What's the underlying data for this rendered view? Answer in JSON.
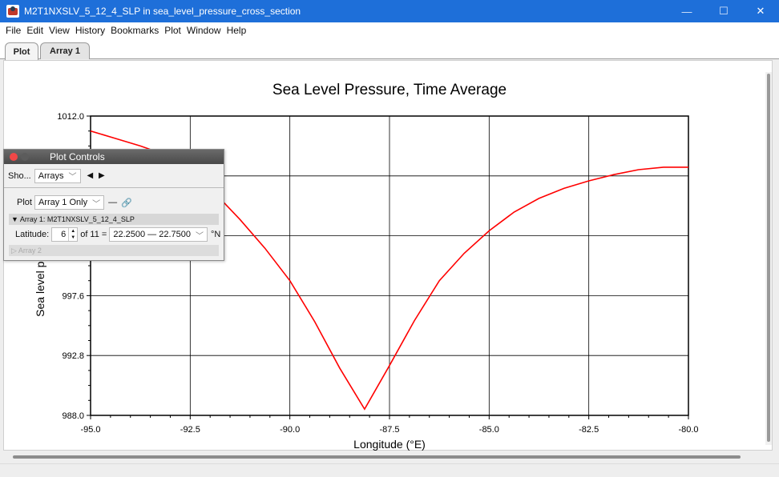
{
  "window": {
    "title": "M2T1NXSLV_5_12_4_SLP in sea_level_pressure_cross_section",
    "minimize_icon": "—",
    "maximize_icon": "☐",
    "close_icon": "✕"
  },
  "menu": [
    "File",
    "Edit",
    "View",
    "History",
    "Bookmarks",
    "Plot",
    "Window",
    "Help"
  ],
  "tabs": [
    {
      "label": "Plot",
      "active": true
    },
    {
      "label": "Array 1",
      "active": false
    }
  ],
  "chart_data": {
    "type": "line",
    "title": "Sea Level Pressure, Time Average",
    "xlabel": "Longitude (°E)",
    "ylabel": "Sea level pressure, t",
    "xlim": [
      -95.0,
      -80.0
    ],
    "ylim": [
      988.0,
      1012.0
    ],
    "x_ticks": [
      "-95.0",
      "-92.5",
      "-90.0",
      "-87.5",
      "-85.0",
      "-82.5",
      "-80.0"
    ],
    "y_ticks": [
      "988.0",
      "992.8",
      "997.6",
      "1012.0"
    ],
    "grid": true,
    "line_color": "#ff0000",
    "series": [
      {
        "x": [
          -95.0,
          -94.375,
          -93.75,
          -93.125,
          -92.5,
          -91.875,
          -91.25,
          -90.625,
          -90.0,
          -89.375,
          -88.75,
          -88.125,
          -87.5,
          -86.875,
          -86.25,
          -85.625,
          -85.0,
          -84.375,
          -83.75,
          -83.125,
          -82.5,
          -81.875,
          -81.25,
          -80.625,
          -80.0
        ],
        "y": [
          1010.8,
          1010.2,
          1009.6,
          1008.9,
          1007.6,
          1005.8,
          1003.7,
          1001.4,
          998.8,
          995.5,
          991.8,
          988.5,
          992.0,
          995.6,
          998.8,
          1001.0,
          1002.8,
          1004.3,
          1005.4,
          1006.2,
          1006.8,
          1007.3,
          1007.7,
          1007.9,
          1007.9
        ]
      }
    ]
  },
  "plot_controls": {
    "title": "Plot Controls",
    "show_label": "Sho...",
    "show_value": "Arrays",
    "nav_arrows": "◀ ▶",
    "plot_label": "Plot",
    "plot_value": "Array 1 Only",
    "dash": "—",
    "link_icon": "🔗",
    "array1_header": "▼ Array 1: M2T1NXSLV_5_12_4_SLP",
    "latitude_label": "Latitude:",
    "latitude_index": "6",
    "of_text": "of 11 =",
    "latitude_range": "22.2500 — 22.7500",
    "unit": "°N",
    "array2_header": "▷ Array 2"
  }
}
